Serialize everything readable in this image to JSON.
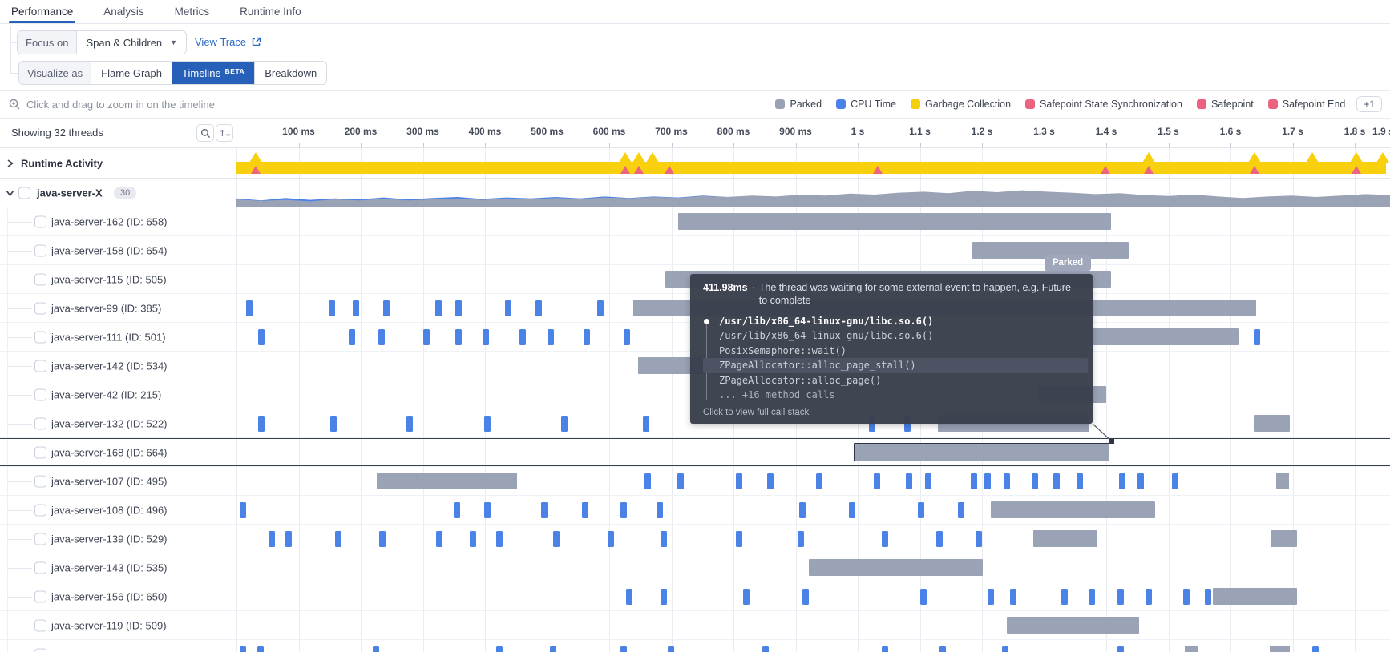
{
  "tabs": {
    "items": [
      {
        "label": "Performance",
        "active": true
      },
      {
        "label": "Analysis",
        "active": false
      },
      {
        "label": "Metrics",
        "active": false
      },
      {
        "label": "Runtime Info",
        "active": false
      }
    ]
  },
  "controls": {
    "focus_label": "Focus on",
    "focus_value": "Span & Children",
    "view_trace_label": "View Trace",
    "visualize_label": "Visualize as",
    "visualize_options": [
      {
        "label": "Flame Graph",
        "badge": "",
        "active": false
      },
      {
        "label": "Timeline",
        "badge": "BETA",
        "active": true
      },
      {
        "label": "Breakdown",
        "badge": "",
        "active": false
      }
    ]
  },
  "toolbar": {
    "hint": "Click and drag to zoom in on the timeline",
    "legend": [
      {
        "label": "Parked",
        "color": "#98a1b6"
      },
      {
        "label": "CPU Time",
        "color": "#4a82e8"
      },
      {
        "label": "Garbage Collection",
        "color": "#f6ce0a"
      },
      {
        "label": "Safepoint State Synchronization",
        "color": "#ec637f"
      },
      {
        "label": "Safepoint",
        "color": "#ec637f"
      },
      {
        "label": "Safepoint End",
        "color": "#ec637f"
      }
    ],
    "legend_more": "+1"
  },
  "threads_header": {
    "label": "Showing 32 threads"
  },
  "axis": {
    "ticks": [
      {
        "label": "100 ms",
        "ms": 100
      },
      {
        "label": "200 ms",
        "ms": 200
      },
      {
        "label": "300 ms",
        "ms": 300
      },
      {
        "label": "400 ms",
        "ms": 400
      },
      {
        "label": "500 ms",
        "ms": 500
      },
      {
        "label": "600 ms",
        "ms": 600
      },
      {
        "label": "700 ms",
        "ms": 700
      },
      {
        "label": "800 ms",
        "ms": 800
      },
      {
        "label": "900 ms",
        "ms": 900
      },
      {
        "label": "1 s",
        "ms": 1000
      },
      {
        "label": "1.1 s",
        "ms": 1100
      },
      {
        "label": "1.2 s",
        "ms": 1200
      },
      {
        "label": "1.3 s",
        "ms": 1300
      },
      {
        "label": "1.4 s",
        "ms": 1400
      },
      {
        "label": "1.5 s",
        "ms": 1500
      },
      {
        "label": "1.6 s",
        "ms": 1600
      },
      {
        "label": "1.7 s",
        "ms": 1700
      },
      {
        "label": "1.8 s",
        "ms": 1800
      },
      {
        "label": "1.9 s",
        "ms": 1900
      }
    ]
  },
  "timeline": {
    "runtime_activity": {
      "label": "Runtime Activity",
      "gc_band_ms": [
        0,
        1850
      ],
      "gc_spikes_ms": [
        31,
        626,
        648,
        670,
        1468,
        1639,
        1732,
        1803,
        1845
      ],
      "safepoint_marks_ms": [
        31,
        626,
        648,
        697,
        1032,
        1399,
        1468,
        1639,
        1803
      ],
      "gc_color": "#f8d00d",
      "safepoint_color": "#ec6480"
    },
    "group": {
      "label": "java-server-X",
      "badge": "30",
      "area_gray": [
        0.3,
        0.24,
        0.28,
        0.22,
        0.3,
        0.26,
        0.32,
        0.26,
        0.3,
        0.34,
        0.28,
        0.34,
        0.3,
        0.36,
        0.32,
        0.38,
        0.34,
        0.4,
        0.36,
        0.44,
        0.4,
        0.46,
        0.42,
        0.5,
        0.46,
        0.54,
        0.5,
        0.58,
        0.62,
        0.56,
        0.66,
        0.6,
        0.68,
        0.62,
        0.58,
        0.52,
        0.56,
        0.48,
        0.44,
        0.5,
        0.42,
        0.36,
        0.42,
        0.46,
        0.4,
        0.46,
        0.52,
        0.48
      ],
      "area_blue": [
        0.34,
        0.26,
        0.36,
        0.28,
        0.34,
        0.3,
        0.38,
        0.3,
        0.36,
        0.4,
        0.32,
        0.38,
        0.34,
        0.4,
        0.34,
        0.42,
        0.36,
        0.42,
        0.38,
        0.46,
        0.4,
        0.44,
        0.4,
        0.46,
        0.42,
        0.48,
        0.44,
        0.5,
        0.52,
        0.46,
        0.54,
        0.48,
        0.54,
        0.5,
        0.46,
        0.42,
        0.44,
        0.38,
        0.36,
        0.4,
        0.34,
        0.3,
        0.36,
        0.4,
        0.34,
        0.4,
        0.44,
        0.4
      ]
    },
    "cursor_ms": 1273,
    "rows": [
      {
        "label": "java-server-162 (ID: 658)",
        "parked": [
          [
            711,
            1408
          ]
        ],
        "cpu": [],
        "selected": false
      },
      {
        "label": "java-server-158 (ID: 654)",
        "parked": [
          [
            1184,
            1436
          ]
        ],
        "cpu": [],
        "selected": false
      },
      {
        "label": "java-server-115 (ID: 505)",
        "parked": [
          [
            690,
            1408
          ]
        ],
        "cpu": [],
        "selected": false
      },
      {
        "label": "java-server-99 (ID: 385)",
        "parked": [
          [
            639,
            1641
          ]
        ],
        "cpu": [
          15,
          148,
          187,
          236,
          320,
          352,
          432,
          481,
          581
        ],
        "selected": false
      },
      {
        "label": "java-server-111 (ID: 501)",
        "parked": [
          [
            1378,
            1614
          ]
        ],
        "cpu": [
          35,
          181,
          228,
          301,
          352,
          396,
          456,
          501,
          559,
          623,
          1638
        ],
        "selected": false
      },
      {
        "label": "java-server-142 (ID: 534)",
        "parked": [
          [
            646,
            900
          ]
        ],
        "cpu": [],
        "selected": false
      },
      {
        "label": "java-server-42 (ID: 215)",
        "parked": [
          [
            1290,
            1400
          ]
        ],
        "cpu": [],
        "selected": false
      },
      {
        "label": "java-server-132 (ID: 522)",
        "parked": [
          [
            1129,
            1373
          ],
          [
            1637,
            1696
          ]
        ],
        "cpu": [
          35,
          151,
          274,
          399,
          523,
          654,
          1018,
          1075
        ],
        "selected": false
      },
      {
        "label": "java-server-168 (ID: 664)",
        "parked": [
          [
            993,
            1405
          ]
        ],
        "cpu": [],
        "selected": true
      },
      {
        "label": "java-server-107 (ID: 495)",
        "parked": [
          [
            226,
            452
          ],
          [
            1674,
            1694
          ]
        ],
        "cpu": [
          657,
          710,
          804,
          854,
          933,
          1026,
          1077,
          1108,
          1182,
          1204,
          1235,
          1280,
          1315,
          1352,
          1421,
          1450,
          1506
        ],
        "selected": false
      },
      {
        "label": "java-server-108 (ID: 496)",
        "parked": [
          [
            1214,
            1479
          ]
        ],
        "cpu": [
          5,
          350,
          399,
          490,
          556,
          618,
          676,
          906,
          986,
          1097,
          1161
        ],
        "selected": false
      },
      {
        "label": "java-server-139 (ID: 529)",
        "parked": [
          [
            1283,
            1386
          ],
          [
            1665,
            1707
          ]
        ],
        "cpu": [
          52,
          79,
          159,
          230,
          321,
          375,
          418,
          510,
          597,
          683,
          804,
          903,
          1039,
          1127,
          1190
        ],
        "selected": false
      },
      {
        "label": "java-server-143 (ID: 535)",
        "parked": [
          [
            921,
            1201
          ]
        ],
        "cpu": [],
        "selected": false
      },
      {
        "label": "java-server-156 (ID: 650)",
        "parked": [
          [
            1572,
            1707
          ]
        ],
        "cpu": [
          627,
          683,
          816,
          911,
          1100,
          1209,
          1245,
          1328,
          1371,
          1418,
          1463,
          1524,
          1559
        ],
        "selected": false
      },
      {
        "label": "java-server-119 (ID: 509)",
        "parked": [
          [
            1240,
            1453
          ]
        ],
        "cpu": [],
        "selected": false
      }
    ],
    "partial_row": {
      "parked": [
        [
          1527,
          1547
        ],
        [
          1663,
          1695
        ]
      ],
      "cpu": [
        5,
        34,
        219,
        418,
        505,
        618,
        694,
        846,
        1039,
        1132,
        1232,
        1418,
        1731
      ]
    }
  },
  "tooltip": {
    "chip": "Parked",
    "duration": "411.98ms",
    "separator": "·",
    "description": "The thread was waiting for some external event to happen, e.g. Future to complete",
    "stack": [
      "/usr/lib/x86_64-linux-gnu/libc.so.6()",
      "/usr/lib/x86_64-linux-gnu/libc.so.6()",
      "PosixSemaphore::wait()",
      "ZPageAllocator::alloc_page_stall()",
      "ZPageAllocator::alloc_page()"
    ],
    "highlight_index": 3,
    "more": "... +16 method calls",
    "footer": "Click to view full call stack"
  },
  "colors": {
    "parked": "#9aa2b6",
    "cpu": "#4a82e8",
    "gc": "#f8d00d",
    "safepoint": "#ec6480",
    "accent": "#2760b8",
    "link": "#2d6bc4"
  }
}
